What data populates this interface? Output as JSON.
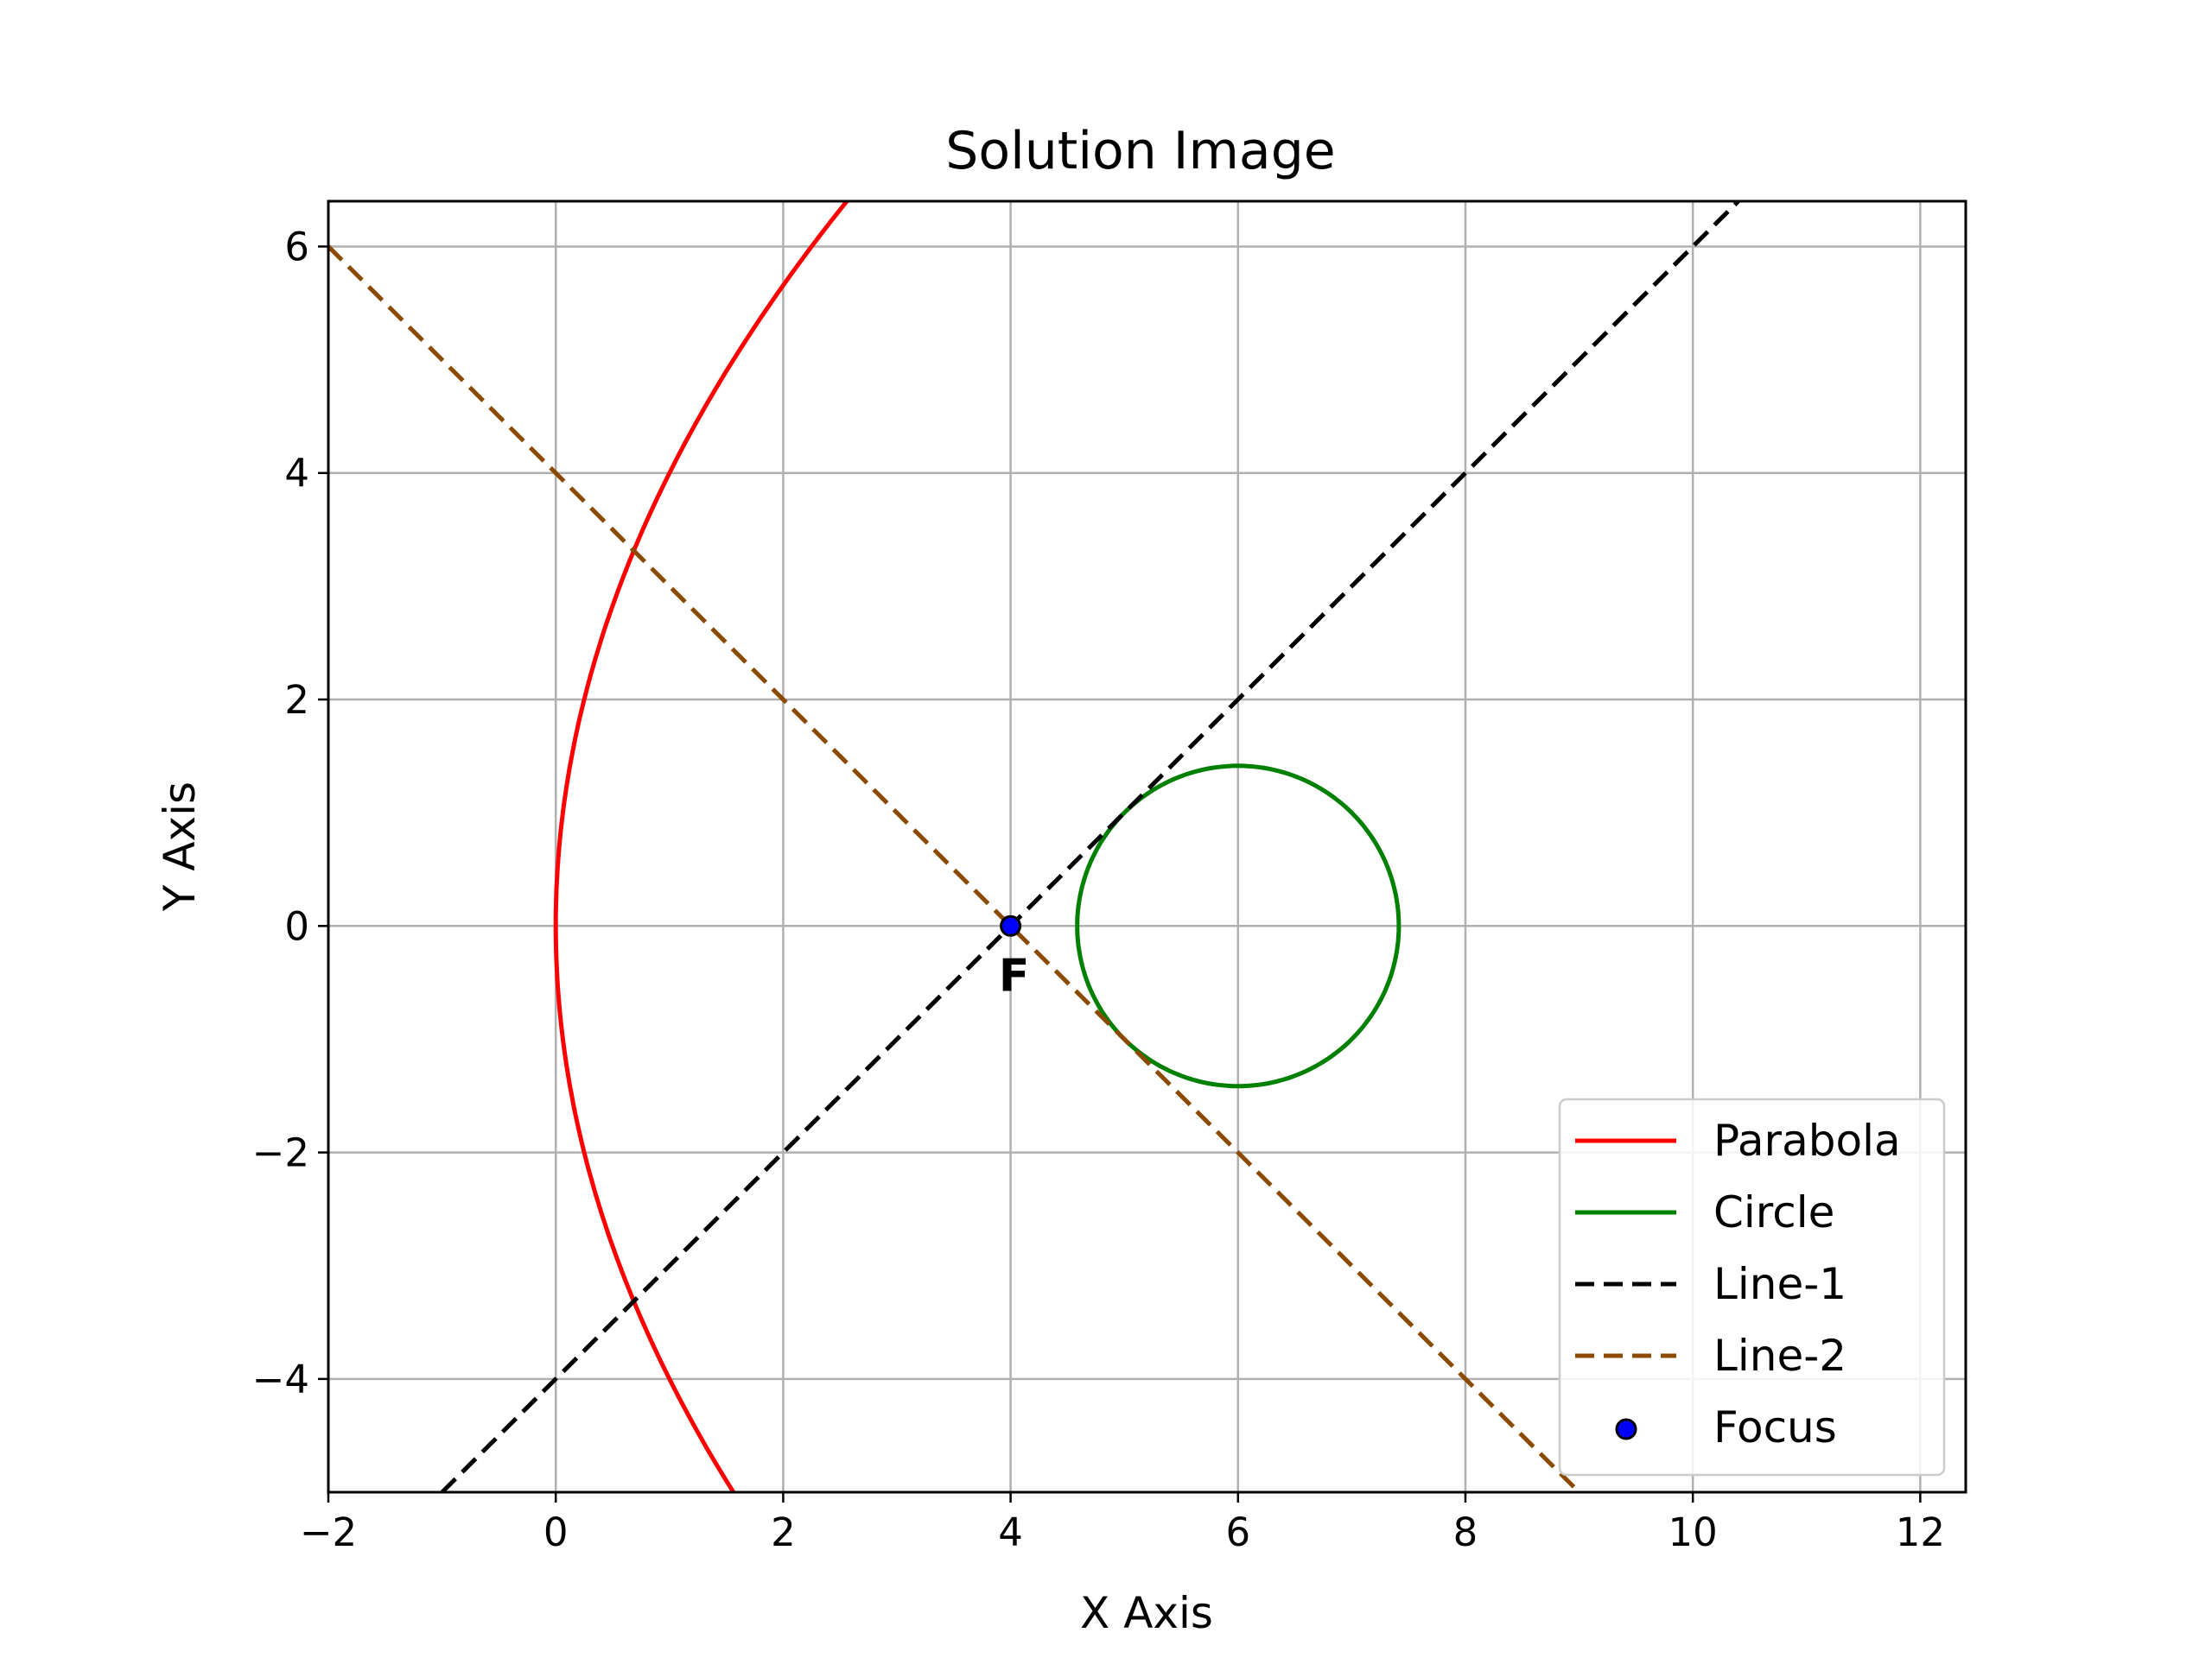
{
  "chart_data": {
    "type": "line",
    "title": "Solution Image",
    "xlabel": "X Axis",
    "ylabel": "Y Axis",
    "xlim": [
      -2,
      12.4
    ],
    "ylim": [
      -5,
      6.4
    ],
    "grid": true,
    "legend_position": "lower-right",
    "xticks": [
      -2,
      0,
      2,
      4,
      6,
      8,
      10,
      12
    ],
    "yticks": [
      -4,
      -2,
      0,
      2,
      4,
      6
    ],
    "xtick_labels": [
      "−2",
      "0",
      "2",
      "4",
      "6",
      "8",
      "10",
      "12"
    ],
    "ytick_labels": [
      "−4",
      "−2",
      "0",
      "2",
      "4",
      "6"
    ],
    "series": [
      {
        "name": "Parabola",
        "kind": "parabola",
        "equation": "y^2 = 16x",
        "color": "#ff0000",
        "style": "solid",
        "y_range": [
          -5,
          6.4
        ]
      },
      {
        "name": "Circle",
        "kind": "circle",
        "center": [
          6,
          0
        ],
        "radius": 1.4142,
        "color": "#008000",
        "style": "solid"
      },
      {
        "name": "Line-1",
        "kind": "line",
        "points": [
          [
            -1,
            -5
          ],
          [
            10.4,
            6.4
          ]
        ],
        "color": "#000000",
        "style": "dashed"
      },
      {
        "name": "Line-2",
        "kind": "line",
        "points": [
          [
            -2,
            6
          ],
          [
            9,
            -5
          ]
        ],
        "color": "#8b4a00",
        "style": "dashed"
      },
      {
        "name": "Focus",
        "kind": "scatter",
        "x": [
          4
        ],
        "y": [
          0
        ],
        "color": "#0000ff",
        "edgecolor": "#000000",
        "label_text": "F"
      }
    ]
  }
}
